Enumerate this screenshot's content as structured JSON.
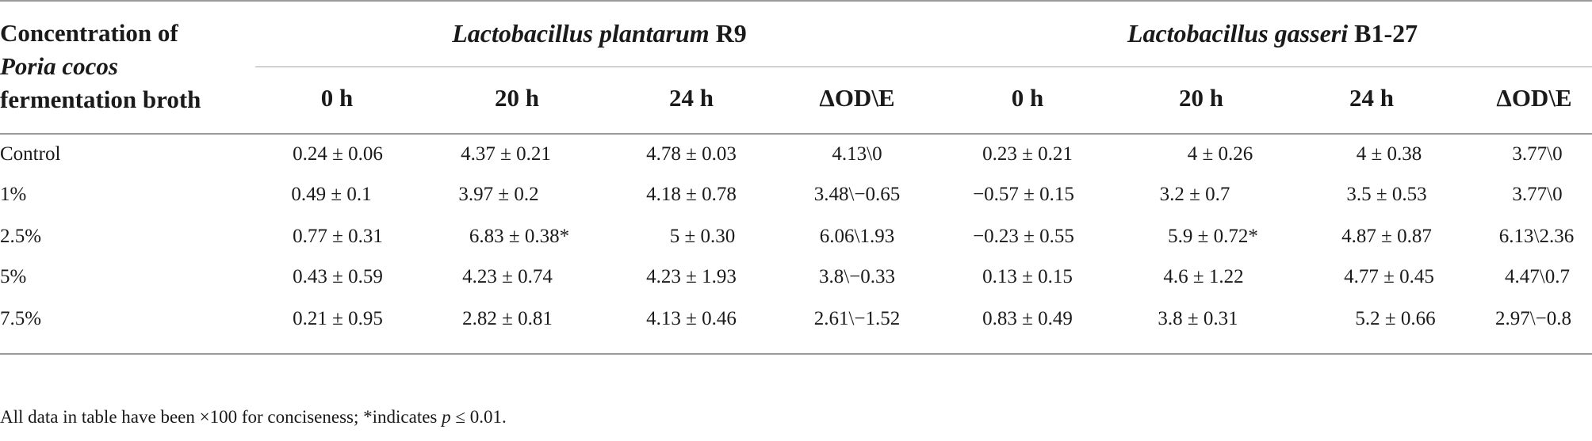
{
  "stub_header": {
    "line1": "Concentration of",
    "line2": "Poria cocos",
    "line3": "fermentation broth"
  },
  "groups": [
    {
      "italic": "Lactobacillus plantarum",
      "plain": " R9"
    },
    {
      "italic": "Lactobacillus gasseri",
      "plain": " B1-27"
    }
  ],
  "columns": [
    "0 h",
    "20 h",
    "24 h",
    "ΔOD\\E",
    "0 h",
    "20 h",
    "24 h",
    "ΔOD\\E"
  ],
  "rows": [
    {
      "label": "Control",
      "cells": [
        "0.24 ± 0.06",
        "4.37 ± 0.21",
        "4.78 ± 0.03",
        "4.13\\0",
        "0.23 ± 0.21",
        "4 ± 0.26",
        "4 ± 0.38",
        "3.77\\0"
      ]
    },
    {
      "label": "1%",
      "cells": [
        "0.49 ± 0.1",
        "3.97 ± 0.2",
        "4.18 ± 0.78",
        "3.48\\−0.65",
        "−0.57 ± 0.15",
        "3.2 ± 0.7",
        "3.5 ± 0.53",
        "3.77\\0"
      ]
    },
    {
      "label": "2.5%",
      "cells": [
        "0.77 ± 0.31",
        "6.83 ± 0.38*",
        "5 ± 0.30",
        "6.06\\1.93",
        "−0.23 ± 0.55",
        "5.9 ± 0.72*",
        "4.87 ± 0.87",
        "6.13\\2.36"
      ]
    },
    {
      "label": "5%",
      "cells": [
        "0.43 ± 0.59",
        "4.23 ± 0.74",
        "4.23 ± 1.93",
        "3.8\\−0.33",
        "0.13 ± 0.15",
        "4.6 ± 1.22",
        "4.77 ± 0.45",
        "4.47\\0.7"
      ]
    },
    {
      "label": "7.5%",
      "cells": [
        "0.21 ± 0.95",
        "2.82 ± 0.81",
        "4.13 ± 0.46",
        "2.61\\−1.52",
        "0.83 ± 0.49",
        "3.8 ± 0.31",
        "5.2 ± 0.66",
        "2.97\\−0.8"
      ]
    }
  ],
  "footnote": {
    "pre": "All data in table have been ×100 for conciseness; *indicates ",
    "p": "p",
    "post": " ≤ 0.01."
  }
}
